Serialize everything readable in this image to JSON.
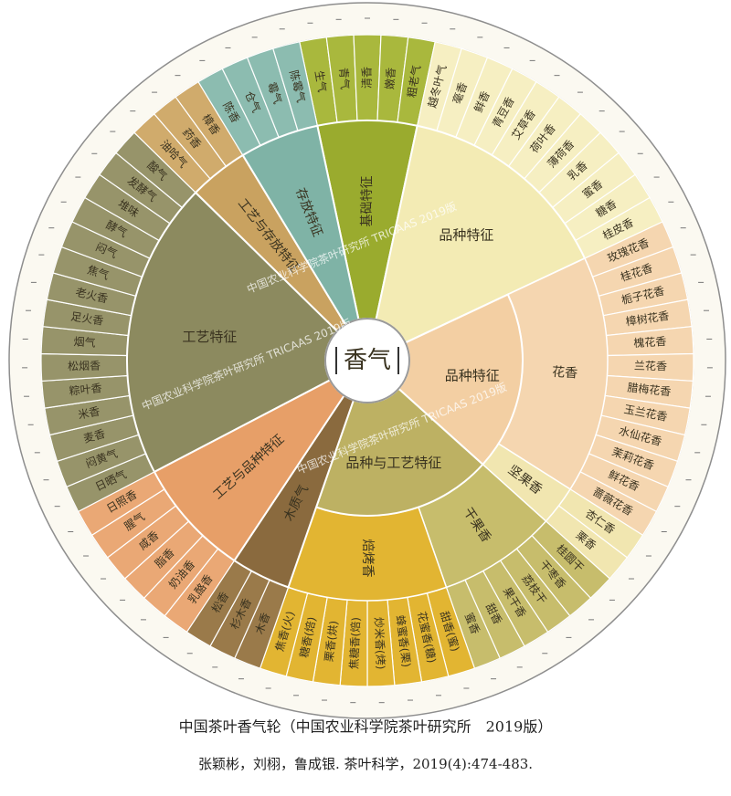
{
  "center": "香气",
  "groups": [
    {
      "label": "基础特征",
      "color": "#9aab2e",
      "children": [
        {
          "color": "#a9b83d",
          "leaves": [
            "生气",
            "青气",
            "清香",
            "嫩香",
            "粗老气"
          ]
        }
      ]
    },
    {
      "label": "品种特征",
      "color": "#f3ebb4",
      "children": [
        {
          "color": "#f6efc2",
          "leaves": [
            "越冬叶气",
            "毫香",
            "鲜香",
            "青豆香",
            "艾草香",
            "荷叶香",
            "薄荷香",
            "乳香",
            "蜜香",
            "糖香",
            "桂皮香"
          ]
        }
      ]
    },
    {
      "label": "品种特征",
      "color": "#f3cfa3",
      "children": [
        {
          "label": "花香",
          "color": "#f5d6b0",
          "leaves": [
            "玫瑰花香",
            "桂花香",
            "栀子花香",
            "樟树花香",
            "槐花香",
            "兰花香",
            "腊梅花香",
            "玉兰花香",
            "水仙花香",
            "茉莉花香",
            "鲜花香",
            "蔷薇花香"
          ]
        },
        {
          "label": "坚果香",
          "color": "#f1e6b0",
          "leaves": [
            "杏仁香",
            "栗香"
          ]
        }
      ]
    },
    {
      "label": "品种与工艺特征",
      "color": "#bdb163",
      "children": [
        {
          "label": "干果香",
          "color": "#c7bd6c",
          "leaves": [
            "桂圆干",
            "干枣香",
            "荔枝干",
            "果干香",
            "甜香",
            "蜜香"
          ]
        },
        {
          "label": "焙烤香",
          "color": "#e2b532",
          "leaves": [
            "甜香(蜜)",
            "花蜜香(糖)",
            "蜂蜜香(栗)",
            "炒米香(烤)",
            "焦糖香(焙)",
            "栗香(烘)",
            "糖香(焙)",
            "焦香(火)"
          ]
        }
      ]
    },
    {
      "label": "木质气",
      "color": "#8a6a3e",
      "children": [
        {
          "color": "#9a7a4a",
          "leaves": [
            "木香",
            "杉木香",
            "松香"
          ]
        }
      ]
    },
    {
      "label": "工艺与品种特征",
      "color": "#e79f68",
      "children": [
        {
          "color": "#eaa875",
          "leaves": [
            "乳酪香",
            "奶油香",
            "脂香",
            "咸香",
            "腥气",
            "日照香"
          ]
        }
      ]
    },
    {
      "label": "工艺特征",
      "color": "#8c8a5f",
      "children": [
        {
          "color": "#97946a",
          "leaves": [
            "日晒气",
            "闷黄气",
            "麦香",
            "米香",
            "粽叶香",
            "松烟香",
            "烟气",
            "足火香",
            "老火香",
            "焦气",
            "闷气",
            "酵气",
            "堆味",
            "发酵气",
            "酸气"
          ]
        }
      ]
    },
    {
      "label": "工艺与存放特征",
      "color": "#c9a260",
      "children": [
        {
          "color": "#d0ab6c",
          "leaves": [
            "油哈气",
            "药香",
            "樟香"
          ]
        }
      ]
    },
    {
      "label": "存放特征",
      "color": "#7fb3a6",
      "children": [
        {
          "color": "#8cbcb0",
          "leaves": [
            "陈香",
            "仓气",
            "霉气",
            "陈霉气"
          ]
        }
      ]
    }
  ],
  "watermark": "中国农业科学院茶叶研究所 TRICAAS 2019版",
  "caption": {
    "title": "中国茶叶香气轮（中国农业科学院茶叶研究所　2019版）",
    "citation": "张颖彬，刘栩，鲁成银. 茶叶科学，2019(4):474-483."
  }
}
